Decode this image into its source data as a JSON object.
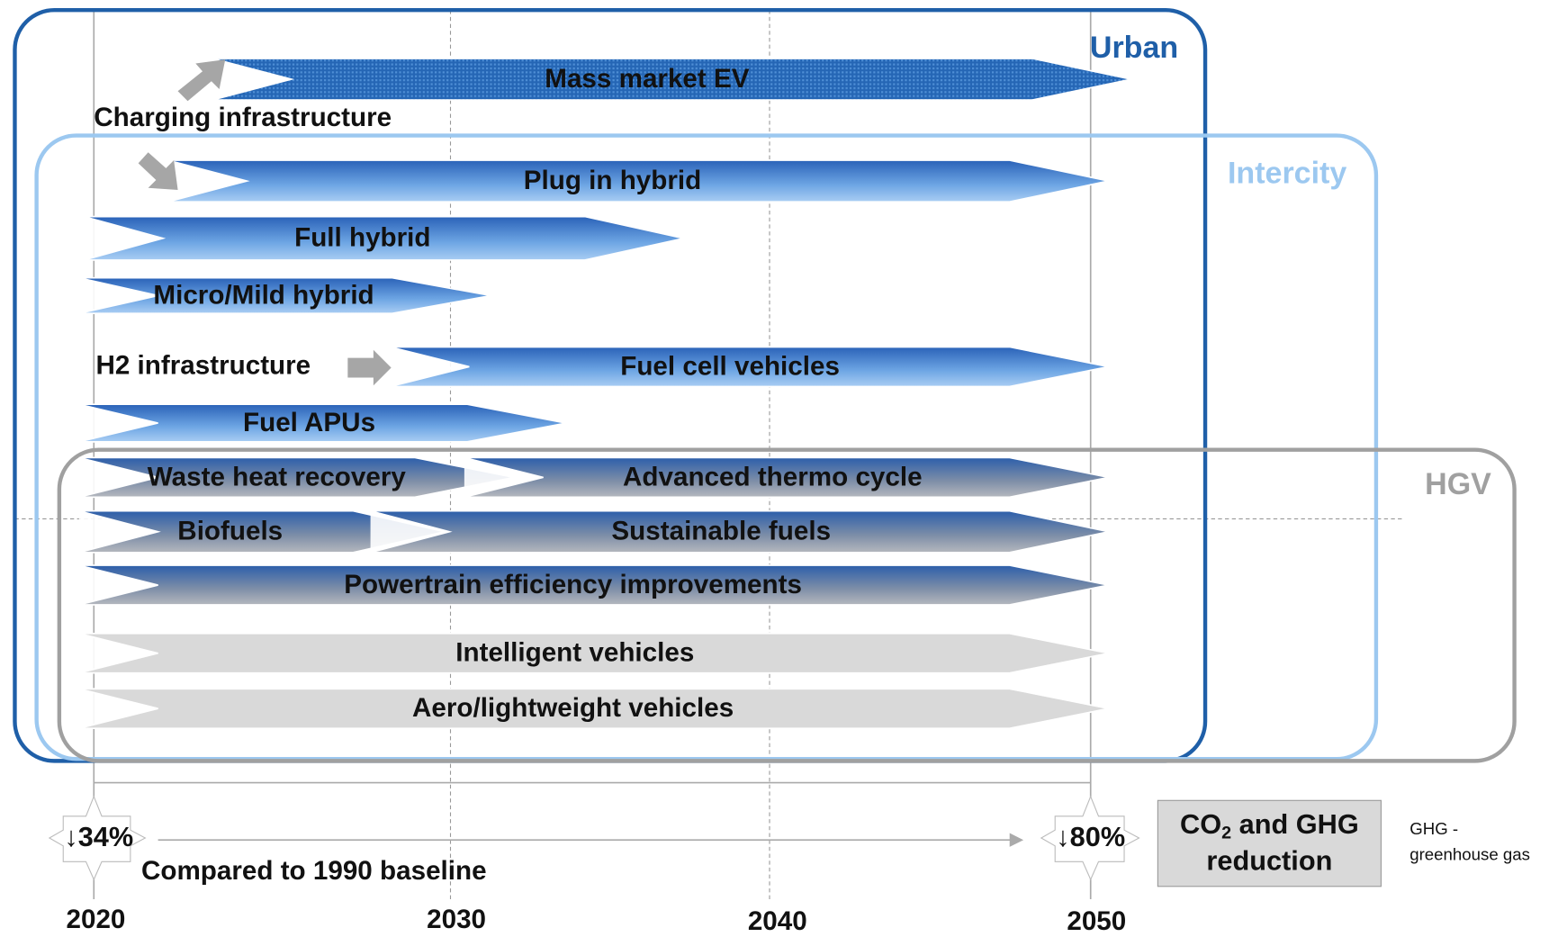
{
  "groups": [
    {
      "label": "Urban"
    },
    {
      "label": "Intercity"
    },
    {
      "label": "HGV"
    }
  ],
  "bars": [
    {
      "label": "Mass market EV"
    },
    {
      "label": "Plug in hybrid"
    },
    {
      "label": "Full hybrid"
    },
    {
      "label": "Micro/Mild hybrid"
    },
    {
      "label": "Fuel cell vehicles"
    },
    {
      "label": "Fuel APUs"
    },
    {
      "label": "Waste heat recovery"
    },
    {
      "label": "Advanced thermo cycle"
    },
    {
      "label": "Biofuels"
    },
    {
      "label": "Sustainable fuels"
    },
    {
      "label": "Powertrain efficiency improvements"
    },
    {
      "label": "Intelligent vehicles"
    },
    {
      "label": "Aero/lightweight vehicles"
    }
  ],
  "notes": [
    "Charging infrastructure",
    "H2 infrastructure"
  ],
  "timeline": {
    "years": [
      "2020",
      "2030",
      "2040",
      "2050"
    ],
    "start": "↓34%",
    "end": "↓80%",
    "caption": "Compared to 1990 baseline"
  },
  "box": {
    "line1_a": "CO",
    "line1_sub": "2",
    "line1_b": " and GHG",
    "line2": "reduction"
  },
  "footnote": [
    "GHG -",
    "greenhouse gas"
  ]
}
